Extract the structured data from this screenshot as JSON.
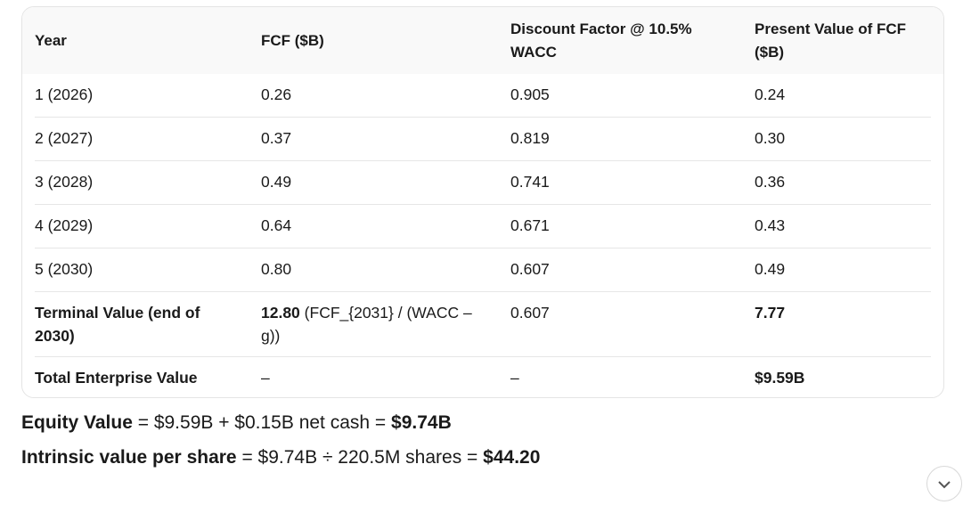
{
  "table": {
    "header": [
      "Year",
      "FCF ($B)",
      "Discount Factor @ 10.5% WACC",
      "Present Value of FCF ($B)"
    ],
    "rows": [
      [
        "1 (2026)",
        "0.26",
        "0.905",
        "0.24"
      ],
      [
        "2 (2027)",
        "0.37",
        "0.819",
        "0.30"
      ],
      [
        "3 (2028)",
        "0.49",
        "0.741",
        "0.36"
      ],
      [
        "4 (2029)",
        "0.64",
        "0.671",
        "0.43"
      ],
      [
        "5 (2030)",
        "0.80",
        "0.607",
        "0.49"
      ],
      [
        "Terminal Value (end of 2030)",
        {
          "value": "12.80",
          "note": "(FCF_{2031} / (WACC – g))"
        },
        "0.607",
        "7.77"
      ],
      [
        "Total Enterprise Value",
        "–",
        "–",
        "$9.59B"
      ]
    ]
  },
  "summary": {
    "equity": {
      "label": "Equity Value",
      "formula": "= $9.59B + $0.15B net cash =",
      "result": "$9.74B"
    },
    "per_share": {
      "label": "Intrinsic value per share",
      "formula": "= $9.74B ÷ 220.5M shares =",
      "result": "$44.20"
    }
  }
}
